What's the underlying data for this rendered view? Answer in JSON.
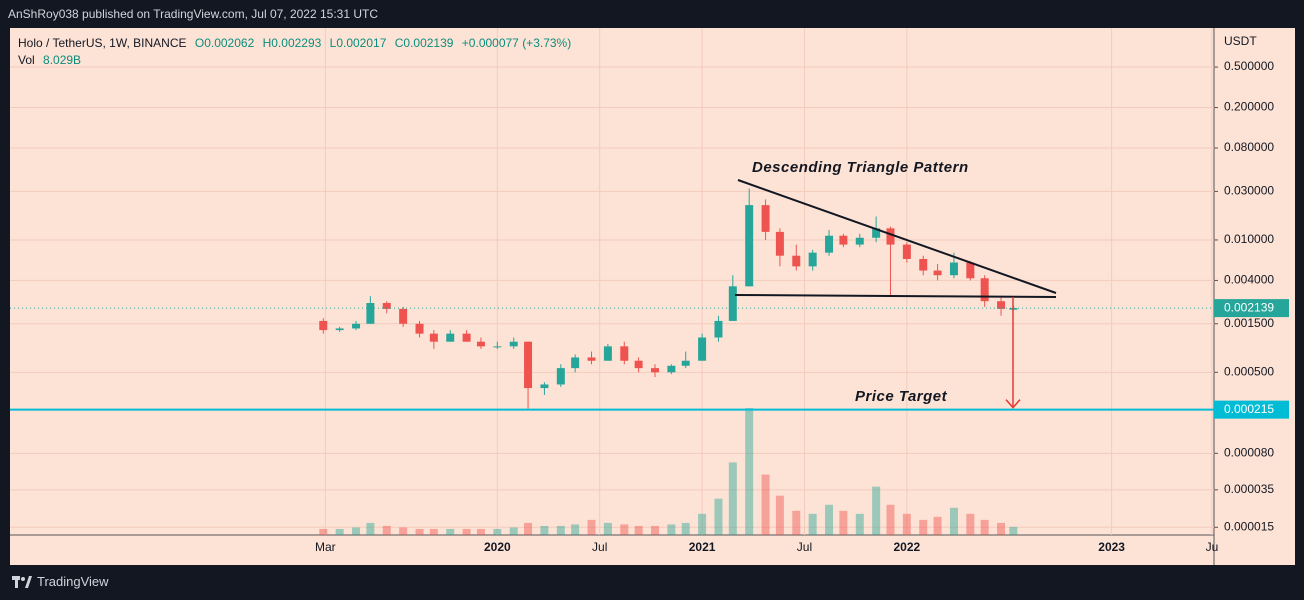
{
  "header": {
    "published": "AnShRoy038 published on TradingView.com, Jul 07, 2022 15:31 UTC",
    "symbol": "Holo / TetherUS, 1W, BINANCE",
    "ohlc": [
      "O0.002062",
      "H0.002293",
      "L0.002017",
      "C0.002139",
      "+0.000077 (+3.73%)"
    ],
    "vol_label": "Vol",
    "vol_value": "8.029B"
  },
  "footer": {
    "brand": "TradingView"
  },
  "chart_data": {
    "type": "candlestick",
    "currency": "USDT",
    "log_scale": true,
    "grid": true,
    "up_color": "#26a69a",
    "down_color": "#ef5350",
    "xlim": [
      2017.62,
      2023.5
    ],
    "xticks": [
      {
        "value": 2019.16,
        "label": "Mar"
      },
      {
        "value": 2020,
        "label": "2020"
      },
      {
        "value": 2020.5,
        "label": "Jul"
      },
      {
        "value": 2021,
        "label": "2021"
      },
      {
        "value": 2021.5,
        "label": "Jul"
      },
      {
        "value": 2022,
        "label": "2022"
      },
      {
        "value": 2023,
        "label": "2023"
      },
      {
        "value": 2023.49,
        "label": "Ju"
      }
    ],
    "ylim": [
      1.21,
      1.26e-05
    ],
    "yticks": [
      {
        "value": 0.5,
        "label": "0.500000"
      },
      {
        "value": 0.2,
        "label": "0.200000"
      },
      {
        "value": 0.08,
        "label": "0.080000"
      },
      {
        "value": 0.03,
        "label": "0.030000"
      },
      {
        "value": 0.01,
        "label": "0.010000"
      },
      {
        "value": 0.004,
        "label": "0.004000"
      },
      {
        "value": 0.0015,
        "label": "0.001500"
      },
      {
        "value": 0.0005,
        "label": "0.000500"
      },
      {
        "value": 8e-05,
        "label": "0.000080"
      },
      {
        "value": 3.5e-05,
        "label": "0.000035"
      },
      {
        "value": 1.5e-05,
        "label": "0.000015"
      }
    ],
    "last_price": {
      "value": 0.002139,
      "label": "0.002139",
      "color": "#26a69a"
    },
    "price_target": {
      "value": 0.000215,
      "label": "0.000215",
      "color": "#00bcd4"
    },
    "annotations": [
      "Descending Triangle Pattern",
      "Price Target"
    ],
    "x": [
      2019.15,
      2019.23,
      2019.31,
      2019.38,
      2019.46,
      2019.54,
      2019.62,
      2019.69,
      2019.77,
      2019.85,
      2019.92,
      2020.0,
      2020.08,
      2020.15,
      2020.23,
      2020.31,
      2020.38,
      2020.46,
      2020.54,
      2020.62,
      2020.69,
      2020.77,
      2020.85,
      2020.92,
      2021.0,
      2021.08,
      2021.15,
      2021.23,
      2021.31,
      2021.38,
      2021.46,
      2021.54,
      2021.62,
      2021.69,
      2021.77,
      2021.85,
      2021.92,
      2022.0,
      2022.08,
      2022.15,
      2022.23,
      2022.31,
      2022.38,
      2022.46,
      2022.52
    ],
    "open": [
      0.0016,
      0.0013,
      0.00135,
      0.0015,
      0.0024,
      0.0021,
      0.0015,
      0.0012,
      0.001,
      0.0012,
      0.001,
      0.0009,
      0.0009,
      0.001,
      0.00035,
      0.00038,
      0.00055,
      0.0007,
      0.00065,
      0.0009,
      0.00065,
      0.00055,
      0.0005,
      0.00058,
      0.00065,
      0.0011,
      0.0016,
      0.0035,
      0.022,
      0.012,
      0.007,
      0.0055,
      0.0075,
      0.011,
      0.009,
      0.0105,
      0.013,
      0.009,
      0.0065,
      0.005,
      0.0045,
      0.006,
      0.0042,
      0.0025,
      0.002062
    ],
    "high": [
      0.0017,
      0.0014,
      0.0016,
      0.0028,
      0.0025,
      0.0022,
      0.0016,
      0.0013,
      0.0013,
      0.0013,
      0.0011,
      0.001,
      0.0011,
      0.001,
      0.0004,
      0.0006,
      0.00075,
      0.0008,
      0.00095,
      0.001,
      0.0007,
      0.0006,
      0.0006,
      0.0008,
      0.0012,
      0.0018,
      0.0045,
      0.032,
      0.025,
      0.013,
      0.009,
      0.008,
      0.0125,
      0.0115,
      0.0115,
      0.017,
      0.0135,
      0.0095,
      0.007,
      0.0058,
      0.0075,
      0.0062,
      0.0045,
      0.0028,
      0.002293
    ],
    "low": [
      0.0012,
      0.00125,
      0.0013,
      0.0015,
      0.0019,
      0.0014,
      0.0011,
      0.00085,
      0.001,
      0.001,
      0.00085,
      0.00085,
      0.00085,
      0.00022,
      0.0003,
      0.00036,
      0.0005,
      0.0006,
      0.00065,
      0.0006,
      0.0005,
      0.00045,
      0.00048,
      0.00055,
      0.00065,
      0.001,
      0.0016,
      0.0035,
      0.01,
      0.0055,
      0.005,
      0.005,
      0.007,
      0.0085,
      0.0085,
      0.0095,
      0.0028,
      0.006,
      0.0045,
      0.004,
      0.0042,
      0.004,
      0.0022,
      0.0018,
      0.002017
    ],
    "close": [
      0.0013,
      0.00135,
      0.0015,
      0.0024,
      0.0021,
      0.0015,
      0.0012,
      0.001,
      0.0012,
      0.001,
      0.0009,
      0.0009,
      0.001,
      0.00035,
      0.00038,
      0.00055,
      0.0007,
      0.00065,
      0.0009,
      0.00065,
      0.00055,
      0.0005,
      0.00058,
      0.00065,
      0.0011,
      0.0016,
      0.0035,
      0.022,
      0.012,
      0.007,
      0.0055,
      0.0075,
      0.011,
      0.009,
      0.0105,
      0.013,
      0.009,
      0.0065,
      0.005,
      0.0045,
      0.006,
      0.0042,
      0.0025,
      0.0021,
      0.002139
    ],
    "volume": [
      2,
      2,
      2.5,
      4,
      3,
      2.5,
      2,
      2,
      2,
      2,
      2,
      2,
      2.5,
      4,
      3,
      3,
      3.5,
      5,
      4,
      3.5,
      3,
      3,
      3.5,
      4,
      7,
      12,
      24,
      42,
      20,
      13,
      8,
      7,
      10,
      8,
      7,
      16,
      10,
      7,
      5,
      6,
      9,
      7,
      5,
      4,
      2.7
    ]
  }
}
